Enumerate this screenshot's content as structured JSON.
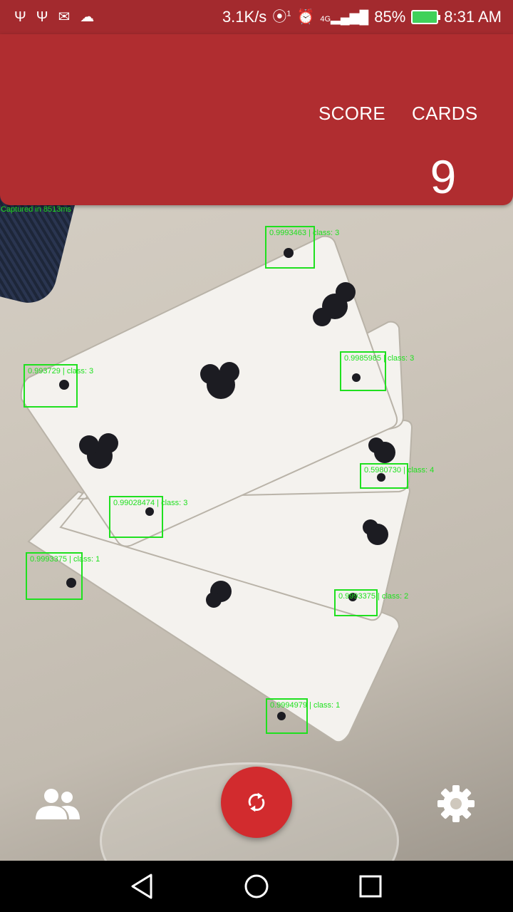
{
  "status_bar": {
    "left_icons": [
      "usb-icon",
      "usb-icon",
      "gmail-icon",
      "cloud-icon"
    ],
    "network_speed": "3.1K/s",
    "signal_icons": [
      "hotspot-icon",
      "alarm-icon",
      "lte-signal-icon"
    ],
    "hotspot_count": "1",
    "network_type": "4G",
    "battery_percent": "85%",
    "time": "8:31 AM"
  },
  "header": {
    "score_label": "SCORE",
    "cards_label": "CARDS",
    "cards_count": "9"
  },
  "capture_info": "Captured in 8513ms",
  "detections": [
    {
      "label": "0.9993463 | class: 3"
    },
    {
      "label": "0.9985985 | class: 3"
    },
    {
      "label": "0.993729 | class: 3"
    },
    {
      "label": "0.5980730 | class: 4"
    },
    {
      "label": "0.99028474 | class: 3"
    },
    {
      "label": "0.9993375 | class: 1"
    },
    {
      "label": "0.9993375 | class: 2"
    },
    {
      "label": "0.9994979 | class: 1"
    }
  ],
  "controls": {
    "players_icon": "people-icon",
    "refresh_icon": "refresh-icon",
    "settings_icon": "gear-icon"
  },
  "nav": {
    "back_icon": "back-triangle-icon",
    "home_icon": "home-circle-icon",
    "recents_icon": "recents-square-icon"
  },
  "colors": {
    "primary": "#b02d30",
    "status_bar": "#a32a2e",
    "fab": "#d22b2e",
    "detection": "#1fe01f"
  }
}
